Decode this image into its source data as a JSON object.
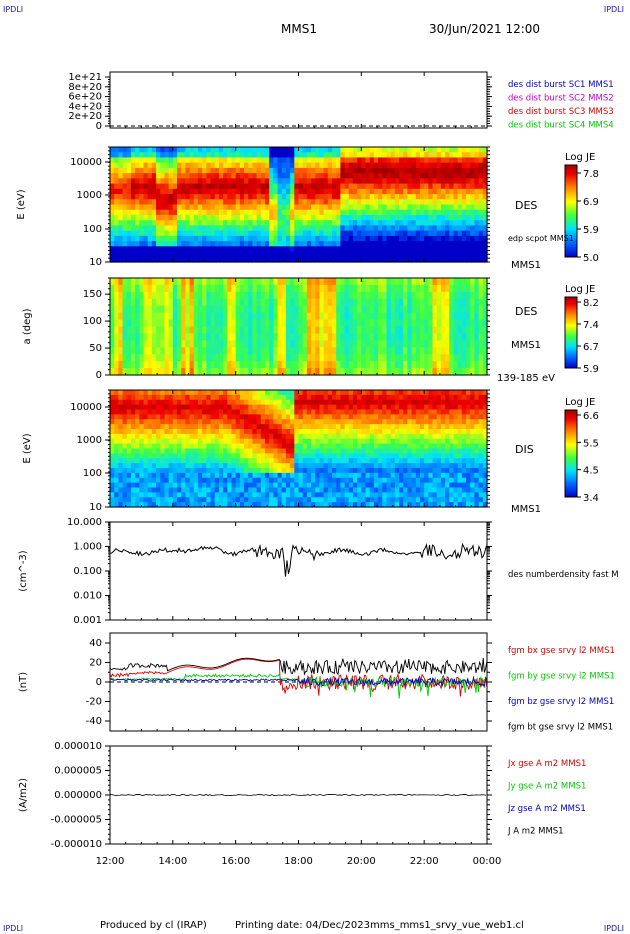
{
  "corners": {
    "tl": "IPDLI",
    "tr": "IPDLI",
    "bl": "IPDLI",
    "br": "IPDLI"
  },
  "header": {
    "title": "MMS1",
    "datetime": "30/Jun/2021 12:00"
  },
  "footer": {
    "left": "Produced by cl (IRAP)",
    "middle": "Printing date: 04/Dec/2023",
    "right": "mms_mms1_srvy_vue_web1.cl"
  },
  "colors": {
    "red": "#dd0000",
    "green": "#00cc00",
    "blue": "#0000cc",
    "magenta": "#cc00cc",
    "black": "#000000"
  },
  "colorbar_stops": [
    "#0000c8",
    "#0066ff",
    "#00e0ff",
    "#40ff40",
    "#ffff00",
    "#ff8800",
    "#ee0000",
    "#a00000"
  ],
  "chart_data": [
    {
      "type": "line",
      "id": "panel1",
      "yticks": [
        "1e+21",
        "8e+20",
        "6e+20",
        "4e+20",
        "2e+20",
        "0"
      ],
      "ylim": [
        0,
        1.1e+21
      ],
      "legend": [
        {
          "label": "des dist burst SC1 MMS1",
          "color": "#0000cc"
        },
        {
          "label": "des dist burst SC2 MMS2",
          "color": "#cc00cc"
        },
        {
          "label": "des dist burst SC3 MMS3",
          "color": "#dd0000"
        },
        {
          "label": "des dist burst SC4 MMS4",
          "color": "#00cc00"
        }
      ]
    },
    {
      "type": "heatmap",
      "id": "panel2",
      "ylabel": "E (eV)",
      "scale": "log",
      "yticks": [
        "10000",
        "1000",
        "100",
        "10"
      ],
      "label": "DES",
      "sublabel": "edp scpot MMS1",
      "bottom_label": "MMS1",
      "colorbar": {
        "title": "Log JE",
        "ticks": [
          "7.8",
          "6.9",
          "5.9",
          "5.0"
        ]
      }
    },
    {
      "type": "heatmap",
      "id": "panel3",
      "ylabel": "a (deg)",
      "yticks": [
        "150",
        "100",
        "50",
        "0"
      ],
      "ylim": [
        0,
        180
      ],
      "label": "DES",
      "sublabel": "MMS1",
      "bottom_label": "139-185 eV",
      "colorbar": {
        "title": "Log JE",
        "ticks": [
          "8.2",
          "7.4",
          "6.7",
          "5.9"
        ]
      }
    },
    {
      "type": "heatmap",
      "id": "panel4",
      "ylabel": "E (eV)",
      "scale": "log",
      "yticks": [
        "10000",
        "1000",
        "100",
        "10"
      ],
      "label": "DIS",
      "bottom_label": "MMS1",
      "colorbar": {
        "title": "Log JE",
        "ticks": [
          "6.6",
          "5.5",
          "4.5",
          "3.4"
        ]
      }
    },
    {
      "type": "line",
      "id": "panel5",
      "ylabel": "(cm^-3)",
      "scale": "log",
      "yticks": [
        "10.000",
        "1.000",
        "0.100",
        "0.010",
        "0.001"
      ],
      "legend": [
        {
          "label": "des numberdensity fast M",
          "color": "#000000"
        }
      ]
    },
    {
      "type": "line",
      "id": "panel6",
      "ylabel": "(nT)",
      "yticks": [
        "40",
        "20",
        "0",
        "-20",
        "-40"
      ],
      "ylim": [
        -50,
        50
      ],
      "legend": [
        {
          "label": "fgm bx gse srvy l2 MMS1",
          "color": "#dd0000"
        },
        {
          "label": "fgm by gse srvy l2 MMS1",
          "color": "#00cc00"
        },
        {
          "label": "fgm bz gse srvy l2 MMS1",
          "color": "#0000cc"
        },
        {
          "label": "fgm bt gse srvy l2 MMS1",
          "color": "#000000"
        }
      ]
    },
    {
      "type": "line",
      "id": "panel7",
      "ylabel": "(A/m2)",
      "yticks": [
        "0.000010",
        "0.000005",
        "0.000000",
        "-0.000005",
        "-0.000010"
      ],
      "ylim": [
        -1e-05,
        1e-05
      ],
      "legend": [
        {
          "label": "Jx gse A m2 MMS1",
          "color": "#dd0000"
        },
        {
          "label": "Jy gse A m2 MMS1",
          "color": "#00cc00"
        },
        {
          "label": "Jz gse A m2 MMS1",
          "color": "#0000cc"
        },
        {
          "label": "J A m2 MMS1",
          "color": "#000000"
        }
      ]
    },
    {
      "type": "axis",
      "id": "xaxis",
      "xticks": [
        "12:00",
        "14:00",
        "16:00",
        "18:00",
        "20:00",
        "22:00",
        "00:00"
      ]
    }
  ]
}
